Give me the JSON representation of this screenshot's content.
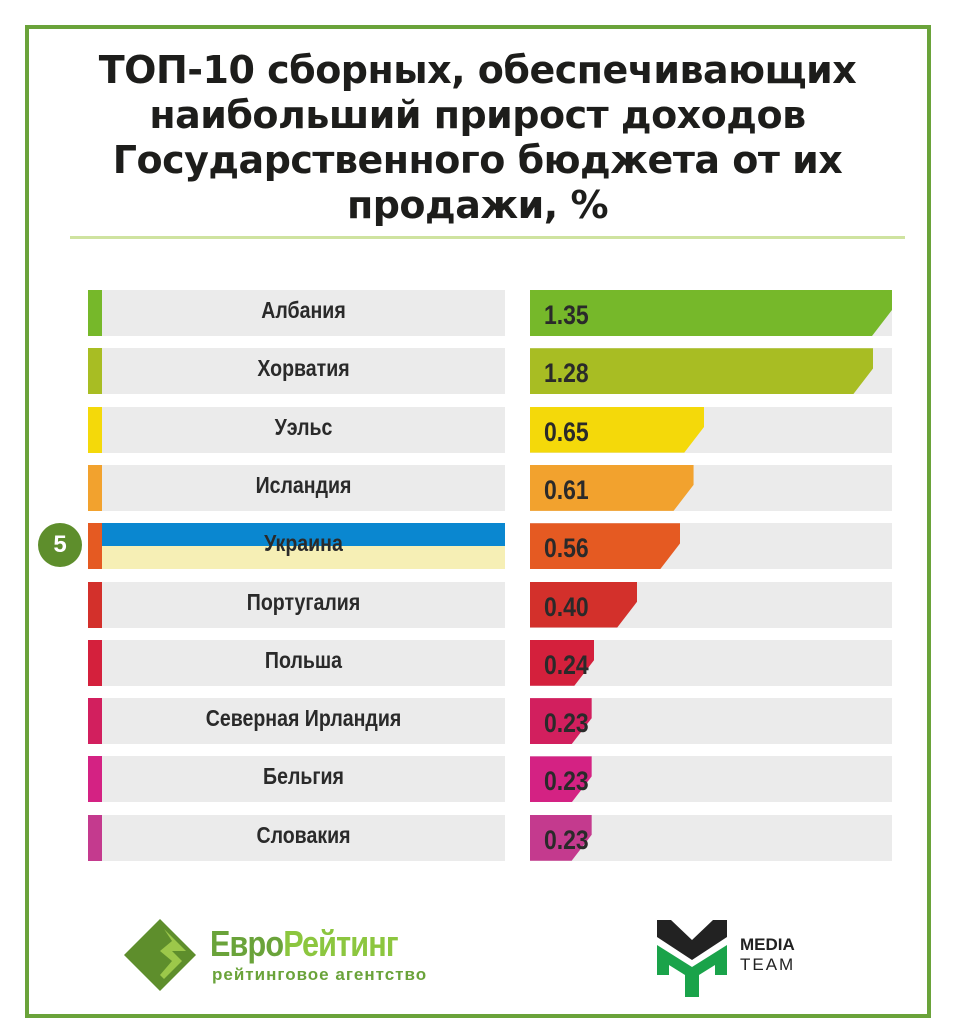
{
  "chart_data": {
    "type": "bar",
    "orientation": "horizontal",
    "title": "ТОП-10 сборных, обеспечивающих наибольший прирост доходов Государственного бюджета от их продажи, %",
    "categories": [
      "Албания",
      "Хорватия",
      "Уэльс",
      "Исландия",
      "Украина",
      "Португалия",
      "Польша",
      "Северная Ирландия",
      "Бельгия",
      "Словакия"
    ],
    "values": [
      1.35,
      1.28,
      0.65,
      0.61,
      0.56,
      0.4,
      0.24,
      0.23,
      0.23,
      0.23
    ],
    "value_labels": [
      "1.35",
      "1.28",
      "0.65",
      "0.61",
      "0.56",
      "0.40",
      "0.24",
      "0.23",
      "0.23",
      "0.23"
    ],
    "colors": [
      "#76b82a",
      "#a8bd23",
      "#f4d90a",
      "#f2a22e",
      "#e55a22",
      "#d3302b",
      "#d4203c",
      "#d21f5e",
      "#d42283",
      "#c43a8e"
    ],
    "xlim": [
      0,
      1.35
    ],
    "grid": false,
    "highlight": {
      "category": "Украина",
      "rank": "5",
      "flag_colors": [
        "#0a87d0",
        "#f6efb5"
      ]
    }
  },
  "logos": {
    "euro": {
      "name_a": "Евро",
      "name_b": "Рейтинг",
      "sub": "рейтинговое агентство"
    },
    "media_team": {
      "line1": "MEDIA",
      "line2": "TEAM"
    }
  }
}
